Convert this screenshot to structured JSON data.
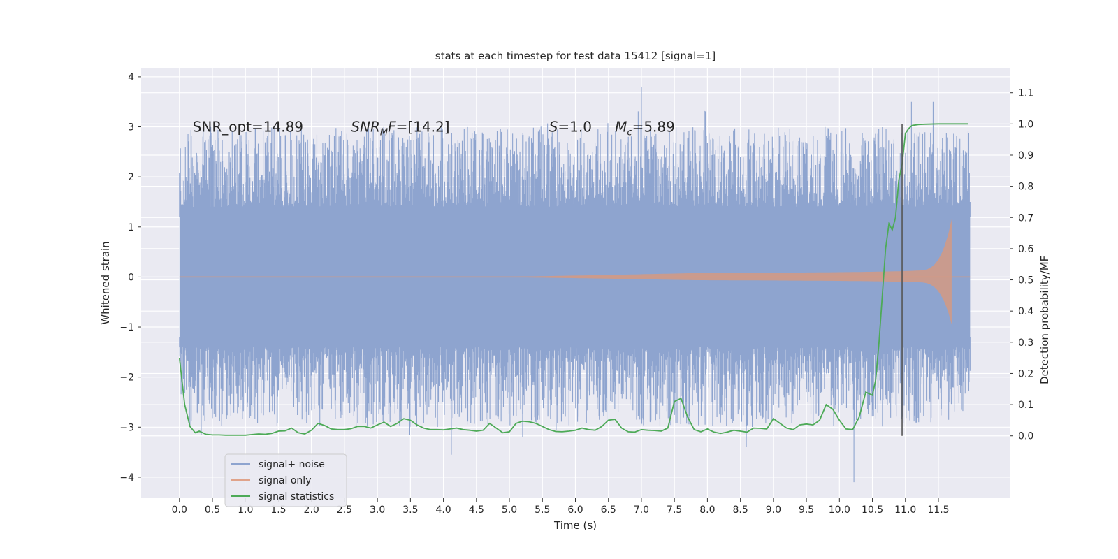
{
  "chart_data": {
    "type": "line",
    "title": "stats at each timestep for test data 15412 [signal=1]",
    "xlabel": "Time (s)",
    "ylabel": "Whitened strain",
    "ylabel_right": "Detection probability/MF",
    "xlim": [
      -0.58,
      12.58
    ],
    "ylim": [
      -4.42,
      4.18
    ],
    "ylim_right": [
      -0.2,
      1.18
    ],
    "xticks": [
      0.0,
      0.5,
      1.0,
      1.5,
      2.0,
      2.5,
      3.0,
      3.5,
      4.0,
      4.5,
      5.0,
      5.5,
      6.0,
      6.5,
      7.0,
      7.5,
      8.0,
      8.5,
      9.0,
      9.5,
      10.0,
      10.5,
      11.0,
      11.5
    ],
    "xtick_labels": [
      "0.0",
      "0.5",
      "1.0",
      "1.5",
      "2.0",
      "2.5",
      "3.0",
      "3.5",
      "4.0",
      "4.5",
      "5.0",
      "5.5",
      "6.0",
      "6.5",
      "7.0",
      "7.5",
      "8.0",
      "8.5",
      "9.0",
      "9.5",
      "10.0",
      "10.5",
      "11.0",
      "11.5"
    ],
    "yticks": [
      -4,
      -3,
      -2,
      -1,
      0,
      1,
      2,
      3,
      4
    ],
    "ytick_labels": [
      "−4",
      "−3",
      "−2",
      "−1",
      "0",
      "1",
      "2",
      "3",
      "4"
    ],
    "yticks_right": [
      0.0,
      0.1,
      0.2,
      0.3,
      0.4,
      0.5,
      0.6,
      0.7,
      0.8,
      0.9,
      1.0,
      1.1
    ],
    "ytick_right_labels": [
      "0.0",
      "0.1",
      "0.2",
      "0.3",
      "0.4",
      "0.5",
      "0.6",
      "0.7",
      "0.8",
      "0.9",
      "1.0",
      "1.1"
    ],
    "annotations": [
      {
        "id": "snr-opt",
        "text": "SNR_opt=14.89",
        "x": 0.2,
        "y": 3.0
      },
      {
        "id": "snr-mf",
        "prefix": "SNR",
        "sub": "M",
        "suffix": "F=[14.2]",
        "x": 2.6,
        "y": 3.0
      },
      {
        "id": "s-val",
        "prefix": "S",
        "suffix": "=1.0",
        "x": 5.6,
        "y": 3.0
      },
      {
        "id": "mc-val",
        "prefix": "M",
        "sub": "c",
        "suffix": "=5.89",
        "x": 6.6,
        "y": 3.0
      }
    ],
    "vline": {
      "x": 10.95,
      "y_range": [
        0.0,
        1.0
      ]
    },
    "noise": {
      "t_start": 0.0,
      "t_end": 11.98,
      "band_lo": -1.3,
      "band_hi": 1.3,
      "extreme_max": 3.8,
      "extreme_min": -4.1
    },
    "signal_only": {
      "t_start": 0.0,
      "t_merge": 11.7,
      "t_end": 11.98,
      "peak_amplitude": 1.5
    },
    "series": [
      {
        "name": "signal statistics",
        "axis": "right",
        "x": [
          0.0,
          0.08,
          0.16,
          0.24,
          0.3,
          0.4,
          0.5,
          0.6,
          0.7,
          0.8,
          0.9,
          1.0,
          1.1,
          1.2,
          1.3,
          1.4,
          1.5,
          1.6,
          1.7,
          1.8,
          1.9,
          2.0,
          2.1,
          2.2,
          2.3,
          2.4,
          2.5,
          2.6,
          2.7,
          2.8,
          2.9,
          3.0,
          3.1,
          3.2,
          3.3,
          3.4,
          3.5,
          3.6,
          3.7,
          3.8,
          3.9,
          4.0,
          4.1,
          4.2,
          4.3,
          4.4,
          4.5,
          4.6,
          4.7,
          4.8,
          4.9,
          5.0,
          5.1,
          5.2,
          5.3,
          5.4,
          5.5,
          5.6,
          5.7,
          5.8,
          5.9,
          6.0,
          6.1,
          6.2,
          6.3,
          6.4,
          6.5,
          6.6,
          6.7,
          6.8,
          6.9,
          7.0,
          7.1,
          7.2,
          7.3,
          7.4,
          7.5,
          7.6,
          7.7,
          7.8,
          7.9,
          8.0,
          8.1,
          8.2,
          8.3,
          8.4,
          8.5,
          8.6,
          8.7,
          8.8,
          8.9,
          9.0,
          9.1,
          9.2,
          9.3,
          9.4,
          9.5,
          9.6,
          9.7,
          9.8,
          9.9,
          10.0,
          10.1,
          10.2,
          10.3,
          10.4,
          10.5,
          10.55,
          10.6,
          10.7,
          10.75,
          10.8,
          10.85,
          10.9,
          10.95,
          11.0,
          11.05,
          11.1,
          11.2,
          11.3,
          11.5,
          11.7,
          11.95
        ],
        "values": [
          0.25,
          0.1,
          0.03,
          0.01,
          0.015,
          0.005,
          0.003,
          0.003,
          0.002,
          0.002,
          0.002,
          0.002,
          0.004,
          0.006,
          0.005,
          0.008,
          0.015,
          0.016,
          0.025,
          0.01,
          0.006,
          0.018,
          0.04,
          0.033,
          0.022,
          0.02,
          0.02,
          0.023,
          0.03,
          0.03,
          0.025,
          0.035,
          0.044,
          0.03,
          0.04,
          0.055,
          0.05,
          0.035,
          0.025,
          0.02,
          0.02,
          0.019,
          0.022,
          0.025,
          0.02,
          0.018,
          0.015,
          0.018,
          0.04,
          0.025,
          0.01,
          0.013,
          0.04,
          0.047,
          0.045,
          0.04,
          0.03,
          0.02,
          0.014,
          0.013,
          0.015,
          0.018,
          0.025,
          0.02,
          0.018,
          0.03,
          0.05,
          0.053,
          0.025,
          0.013,
          0.012,
          0.02,
          0.018,
          0.017,
          0.015,
          0.025,
          0.11,
          0.12,
          0.06,
          0.02,
          0.013,
          0.022,
          0.012,
          0.008,
          0.012,
          0.018,
          0.015,
          0.012,
          0.025,
          0.024,
          0.022,
          0.055,
          0.04,
          0.025,
          0.02,
          0.035,
          0.038,
          0.035,
          0.05,
          0.1,
          0.085,
          0.05,
          0.022,
          0.02,
          0.06,
          0.14,
          0.13,
          0.18,
          0.3,
          0.6,
          0.68,
          0.66,
          0.7,
          0.82,
          0.87,
          0.97,
          0.985,
          0.995,
          0.998,
          0.999,
          1.0,
          1.0,
          1.0
        ]
      }
    ],
    "legend": {
      "position": "lower-left",
      "entries": [
        {
          "label": "signal+ noise",
          "color": "#8ea4cf"
        },
        {
          "label": "signal only",
          "color": "#e0a38a"
        },
        {
          "label": "signal statistics",
          "color": "#4daa57"
        }
      ]
    },
    "colors": {
      "background": "#ffffff",
      "axes_face": "#eaeaf2",
      "grid": "#ffffff",
      "noise": "#8ea4cf",
      "signal": "#d49a83",
      "stat": "#4daa57",
      "vline": "#555555"
    }
  }
}
